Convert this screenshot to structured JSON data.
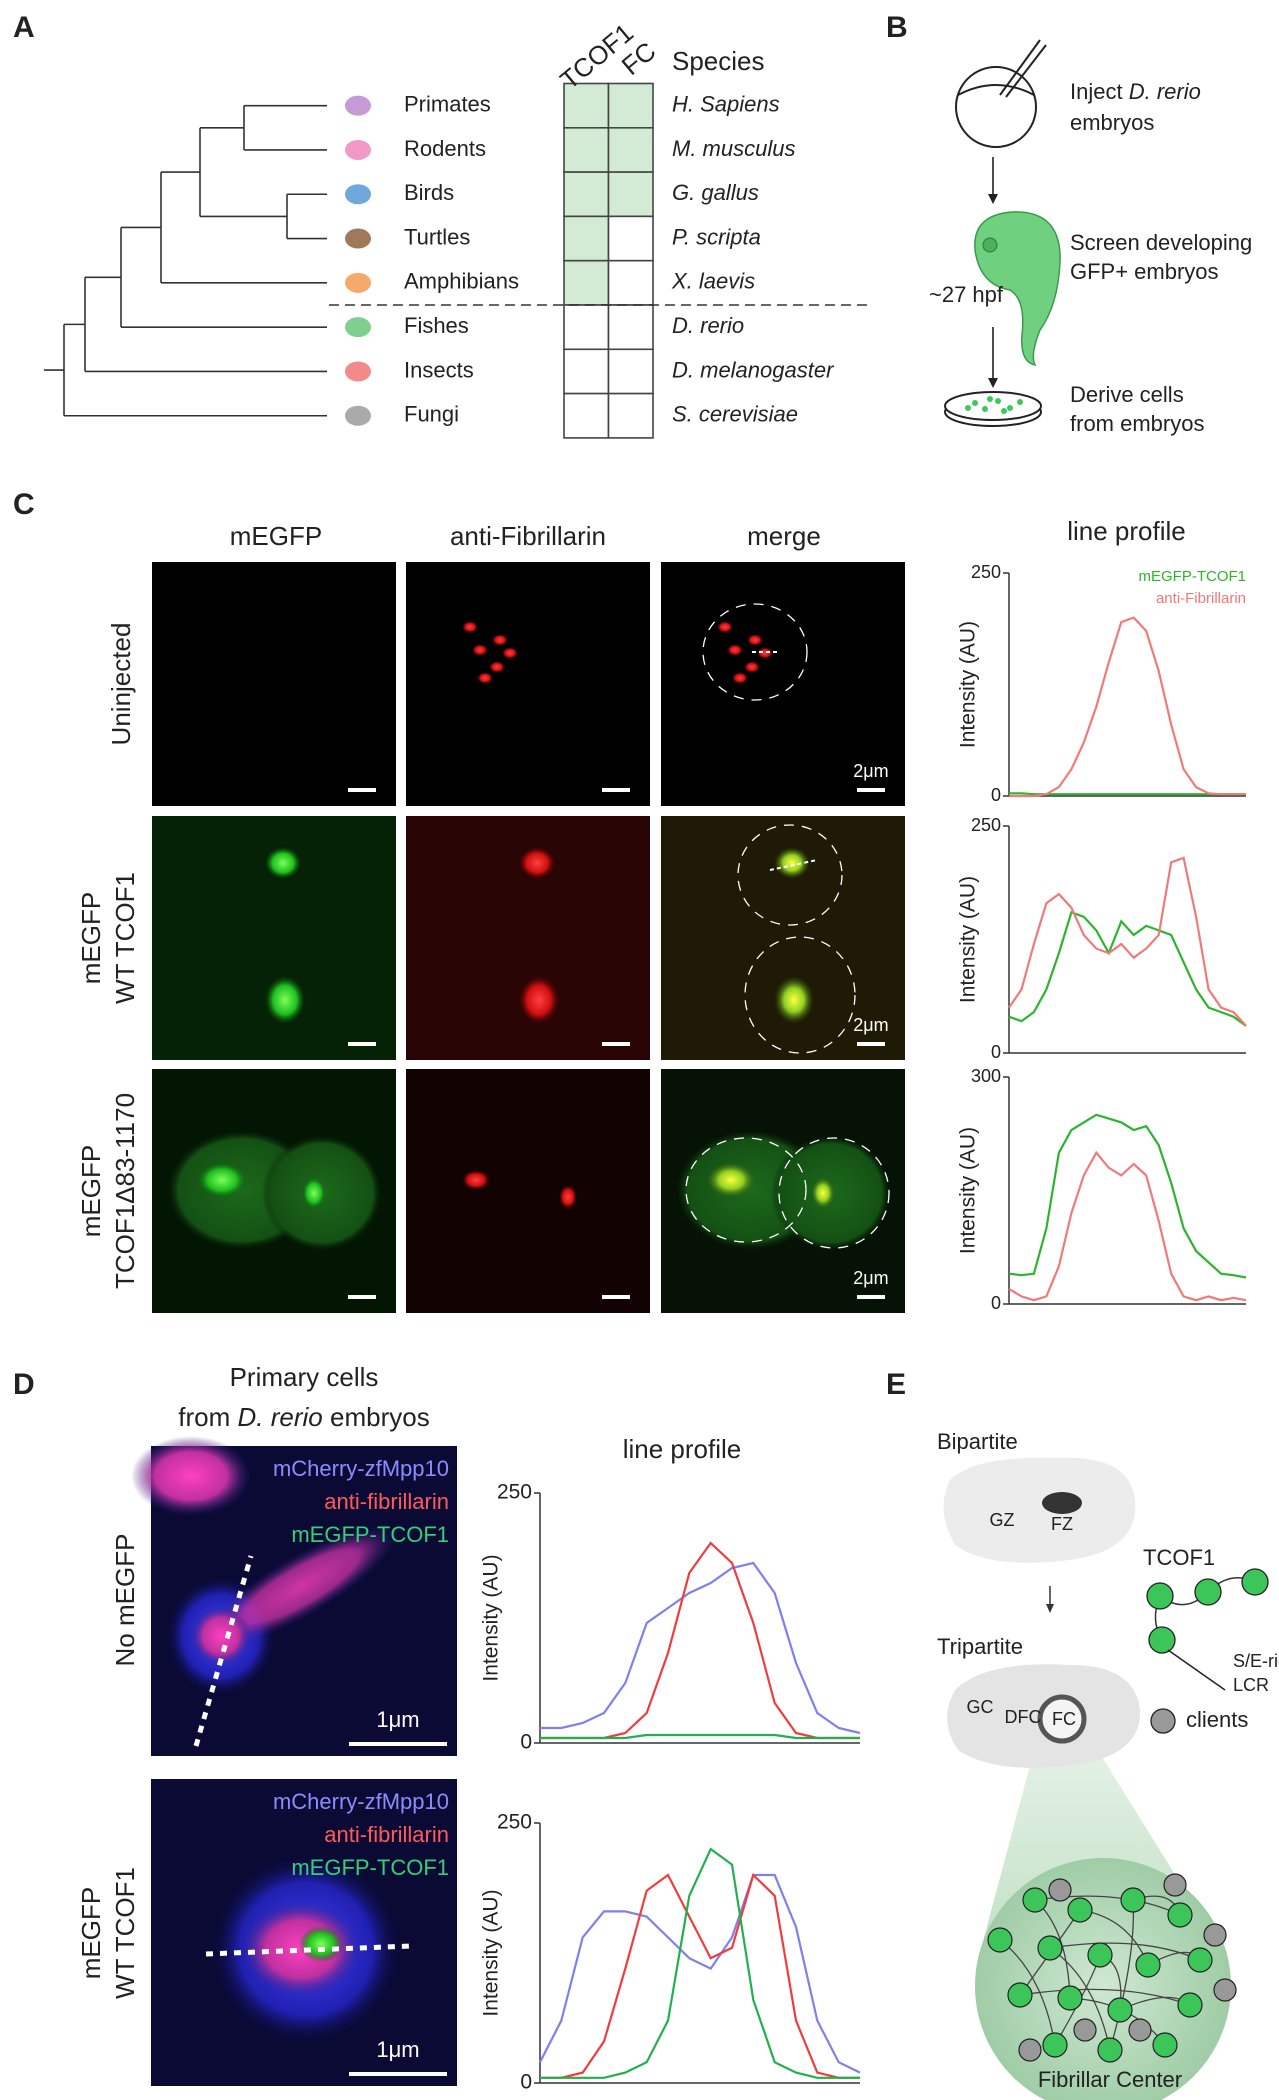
{
  "panel_labels": [
    "A",
    "B",
    "C",
    "D",
    "E"
  ],
  "panel_a": {
    "headers": [
      "TCOF1",
      "FC"
    ],
    "species_header": "Species",
    "rows": [
      {
        "group": "Primates",
        "species": "H. Sapiens",
        "tcof1": true,
        "fc": true
      },
      {
        "group": "Rodents",
        "species": "M. musculus",
        "tcof1": true,
        "fc": true
      },
      {
        "group": "Birds",
        "species": "G. gallus",
        "tcof1": true,
        "fc": true
      },
      {
        "group": "Turtles",
        "species": "P. scripta",
        "tcof1": true,
        "fc": false
      },
      {
        "group": "Amphibians",
        "species": "X. laevis",
        "tcof1": true,
        "fc": false
      },
      {
        "group": "Fishes",
        "species": "D. rerio",
        "tcof1": false,
        "fc": false
      },
      {
        "group": "Insects",
        "species": "D. melanogaster",
        "tcof1": false,
        "fc": false
      },
      {
        "group": "Fungi",
        "species": "S. cerevisiae",
        "tcof1": false,
        "fc": false
      }
    ],
    "present_color": "#d3ebd5"
  },
  "panel_b": {
    "step1": {
      "pre": "Inject",
      "em": "D. rerio",
      "post": "embryos"
    },
    "step2": [
      "Screen developing",
      "GFP+ embryos"
    ],
    "time": "~27 hpf",
    "step3": [
      "Derive cells",
      "from embryos"
    ]
  },
  "panel_c": {
    "columns": [
      "mEGFP",
      "anti-Fibrillarin",
      "merge"
    ],
    "rows": [
      [
        "Uninjected"
      ],
      [
        "mEGFP",
        "WT TCOF1"
      ],
      [
        "mEGFP",
        "TCOF1Δ83-1170"
      ]
    ],
    "scale_bar": "2μm"
  },
  "panel_d": {
    "title": {
      "line1": "Primary cells",
      "pre": "from",
      "em": "D. rerio",
      "post": "embryos"
    },
    "channels": [
      "mCherry-zfMpp10",
      "anti-fibrillarin",
      "mEGFP-TCOF1"
    ],
    "rows": [
      [
        "No mEGFP"
      ],
      [
        "mEGFP",
        "WT TCOF1"
      ]
    ],
    "scale_bar": "1μm"
  },
  "panel_e": {
    "bipartite": "Bipartite",
    "gz": "GZ",
    "fz": "FZ",
    "tripartite": "Tripartite",
    "gc": "GC",
    "dfc": "DFC",
    "fc": "FC",
    "tcof1": "TCOF1",
    "lcr": [
      "S/E-rich",
      "LCR"
    ],
    "clients": "clients",
    "fibrillar_center": "Fibrillar Center"
  },
  "chart_data": [
    {
      "type": "line",
      "title": "line profile",
      "ylabel": "Intensity (AU)",
      "ylim": [
        0,
        250
      ],
      "yticks": [
        0,
        250
      ],
      "legend": "top-right",
      "series": [
        {
          "name": "mEGFP-TCOF1",
          "color": "#2cb52c",
          "values": [
            3,
            3,
            2,
            2,
            2,
            2,
            2,
            2,
            2,
            2,
            2,
            2,
            2,
            2,
            2,
            2,
            2,
            2,
            2,
            2
          ]
        },
        {
          "name": "anti-Fibrillarin",
          "color": "#f07a7a",
          "values": [
            0,
            0,
            0,
            2,
            10,
            30,
            60,
            100,
            150,
            195,
            200,
            185,
            140,
            80,
            30,
            10,
            3,
            2,
            2,
            2
          ]
        }
      ]
    },
    {
      "type": "line",
      "ylabel": "Intensity (AU)",
      "ylim": [
        0,
        250
      ],
      "yticks": [
        0,
        250
      ],
      "series": [
        {
          "color": "#2cb52c",
          "values": [
            40,
            35,
            45,
            70,
            110,
            155,
            150,
            135,
            110,
            145,
            130,
            140,
            135,
            130,
            100,
            70,
            50,
            45,
            40,
            30
          ]
        },
        {
          "color": "#f07a7a",
          "values": [
            50,
            70,
            120,
            165,
            175,
            160,
            130,
            115,
            110,
            120,
            105,
            115,
            130,
            210,
            215,
            150,
            70,
            50,
            45,
            30
          ]
        }
      ]
    },
    {
      "type": "line",
      "ylabel": "Intensity (AU)",
      "ylim": [
        0,
        300
      ],
      "yticks": [
        0,
        300
      ],
      "series": [
        {
          "color": "#2cb52c",
          "values": [
            40,
            38,
            40,
            100,
            200,
            230,
            240,
            250,
            245,
            240,
            230,
            235,
            210,
            160,
            100,
            70,
            55,
            40,
            38,
            35
          ]
        },
        {
          "color": "#f07a7a",
          "values": [
            20,
            10,
            5,
            10,
            50,
            120,
            170,
            200,
            180,
            170,
            185,
            170,
            110,
            40,
            10,
            5,
            10,
            5,
            8,
            5
          ]
        }
      ]
    },
    {
      "type": "line",
      "title": "line profile",
      "ylabel": "Intensity (AU)",
      "ylim": [
        0,
        250
      ],
      "yticks": [
        0,
        250
      ],
      "series": [
        {
          "color": "#7f7fef",
          "values": [
            15,
            15,
            20,
            30,
            60,
            120,
            135,
            150,
            160,
            175,
            180,
            150,
            80,
            30,
            15,
            10
          ]
        },
        {
          "color": "#ef3d3d",
          "values": [
            5,
            5,
            5,
            5,
            10,
            30,
            90,
            170,
            200,
            180,
            120,
            40,
            10,
            5,
            5,
            5
          ]
        },
        {
          "color": "#22b04f",
          "values": [
            5,
            5,
            5,
            5,
            5,
            8,
            8,
            8,
            8,
            8,
            8,
            8,
            5,
            5,
            5,
            5
          ]
        }
      ]
    },
    {
      "type": "line",
      "ylabel": "Intensity (AU)",
      "ylim": [
        0,
        250
      ],
      "yticks": [
        0,
        250
      ],
      "series": [
        {
          "color": "#7f7fef",
          "values": [
            20,
            60,
            140,
            165,
            165,
            160,
            140,
            120,
            110,
            140,
            200,
            200,
            150,
            60,
            20,
            10
          ]
        },
        {
          "color": "#ef3d3d",
          "values": [
            5,
            5,
            10,
            40,
            110,
            185,
            200,
            160,
            120,
            130,
            200,
            180,
            60,
            10,
            5,
            5
          ]
        },
        {
          "color": "#22b04f",
          "values": [
            5,
            5,
            5,
            5,
            10,
            20,
            60,
            180,
            225,
            210,
            80,
            20,
            10,
            5,
            5,
            5
          ]
        }
      ]
    }
  ]
}
